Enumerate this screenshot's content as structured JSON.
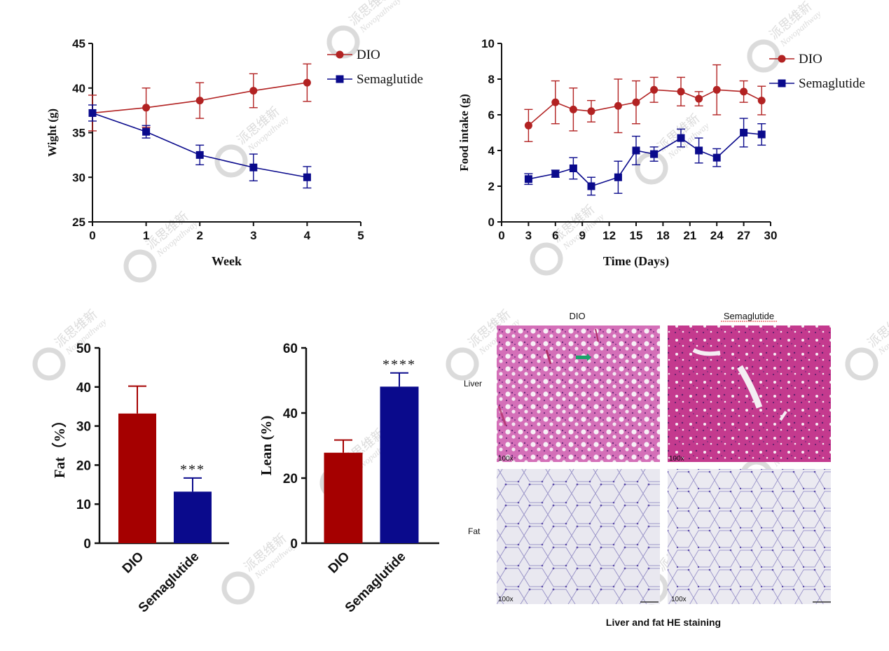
{
  "colors": {
    "dio": "#b22222",
    "sema": "#0a0a8c",
    "dio_bar": "#a50000",
    "sema_bar": "#0a0a8c",
    "axis": "#111111"
  },
  "chart_data": [
    {
      "type": "line",
      "xlabel": "Week",
      "ylabel": "Wight (g)",
      "xlim": [
        0,
        5
      ],
      "ylim": [
        25,
        45
      ],
      "xticks": [
        "0",
        "1",
        "2",
        "3",
        "4",
        "5"
      ],
      "yticks": [
        "25",
        "30",
        "35",
        "40",
        "45"
      ],
      "legend_position": "top-right",
      "series": [
        {
          "name": "DIO",
          "x": [
            0,
            1,
            2,
            3,
            4
          ],
          "values": [
            37.2,
            37.8,
            38.6,
            39.7,
            40.6
          ],
          "err": [
            2.0,
            2.2,
            2.0,
            1.9,
            2.1
          ]
        },
        {
          "name": "Semaglutide",
          "x": [
            0,
            1,
            2,
            3,
            4
          ],
          "values": [
            37.2,
            35.1,
            32.5,
            31.1,
            30.0
          ],
          "err": [
            0.9,
            0.7,
            1.1,
            1.5,
            1.2
          ]
        }
      ]
    },
    {
      "type": "line",
      "xlabel": "Time (Days)",
      "ylabel": "Food intake (g)",
      "xlim": [
        0,
        30
      ],
      "ylim": [
        0,
        10
      ],
      "xticks": [
        "0",
        "3",
        "6",
        "9",
        "12",
        "15",
        "18",
        "21",
        "24",
        "27",
        "30"
      ],
      "yticks": [
        "0",
        "2",
        "4",
        "6",
        "8",
        "10"
      ],
      "legend_position": "top-right",
      "series": [
        {
          "name": "DIO",
          "x": [
            3,
            6,
            8,
            10,
            13,
            15,
            17,
            20,
            22,
            24,
            27,
            29
          ],
          "values": [
            5.4,
            6.7,
            6.3,
            6.2,
            6.5,
            6.7,
            7.4,
            7.3,
            6.9,
            7.4,
            7.3,
            6.8
          ],
          "err": [
            0.9,
            1.2,
            1.2,
            0.6,
            1.5,
            1.2,
            0.7,
            0.8,
            0.4,
            1.4,
            0.6,
            0.8
          ]
        },
        {
          "name": "Semaglutide",
          "x": [
            3,
            6,
            8,
            10,
            13,
            15,
            17,
            20,
            22,
            24,
            27,
            29
          ],
          "values": [
            2.4,
            2.7,
            3.0,
            2.0,
            2.5,
            4.0,
            3.8,
            4.7,
            4.0,
            3.6,
            5.0,
            4.9
          ],
          "err": [
            0.3,
            0.2,
            0.6,
            0.5,
            0.9,
            0.8,
            0.4,
            0.5,
            0.7,
            0.5,
            0.8,
            0.6
          ]
        }
      ]
    },
    {
      "type": "bar",
      "ylabel": "Fat（%）",
      "ylim": [
        0,
        50
      ],
      "yticks": [
        "0",
        "10",
        "20",
        "30",
        "40",
        "50"
      ],
      "categories": [
        "DIO",
        "Semaglutide"
      ],
      "values": [
        33.2,
        13.2
      ],
      "err": [
        7.0,
        3.5
      ],
      "annotations": [
        "",
        "***"
      ]
    },
    {
      "type": "bar",
      "ylabel": "Lean (%)",
      "ylim": [
        0,
        60
      ],
      "yticks": [
        "0",
        "20",
        "40",
        "60"
      ],
      "categories": [
        "DIO",
        "Semaglutide"
      ],
      "values": [
        27.8,
        48.1
      ],
      "err": [
        3.9,
        4.2
      ],
      "annotations": [
        "",
        "****"
      ]
    }
  ],
  "micrographs": {
    "columns": [
      "DIO",
      "Semaglutide"
    ],
    "rows": [
      "Liver",
      "Fat"
    ],
    "magnification": "100x",
    "caption": "Liver and fat HE staining"
  },
  "watermark": {
    "brand_cn": "派思维新",
    "brand_en": "Novopathway"
  }
}
